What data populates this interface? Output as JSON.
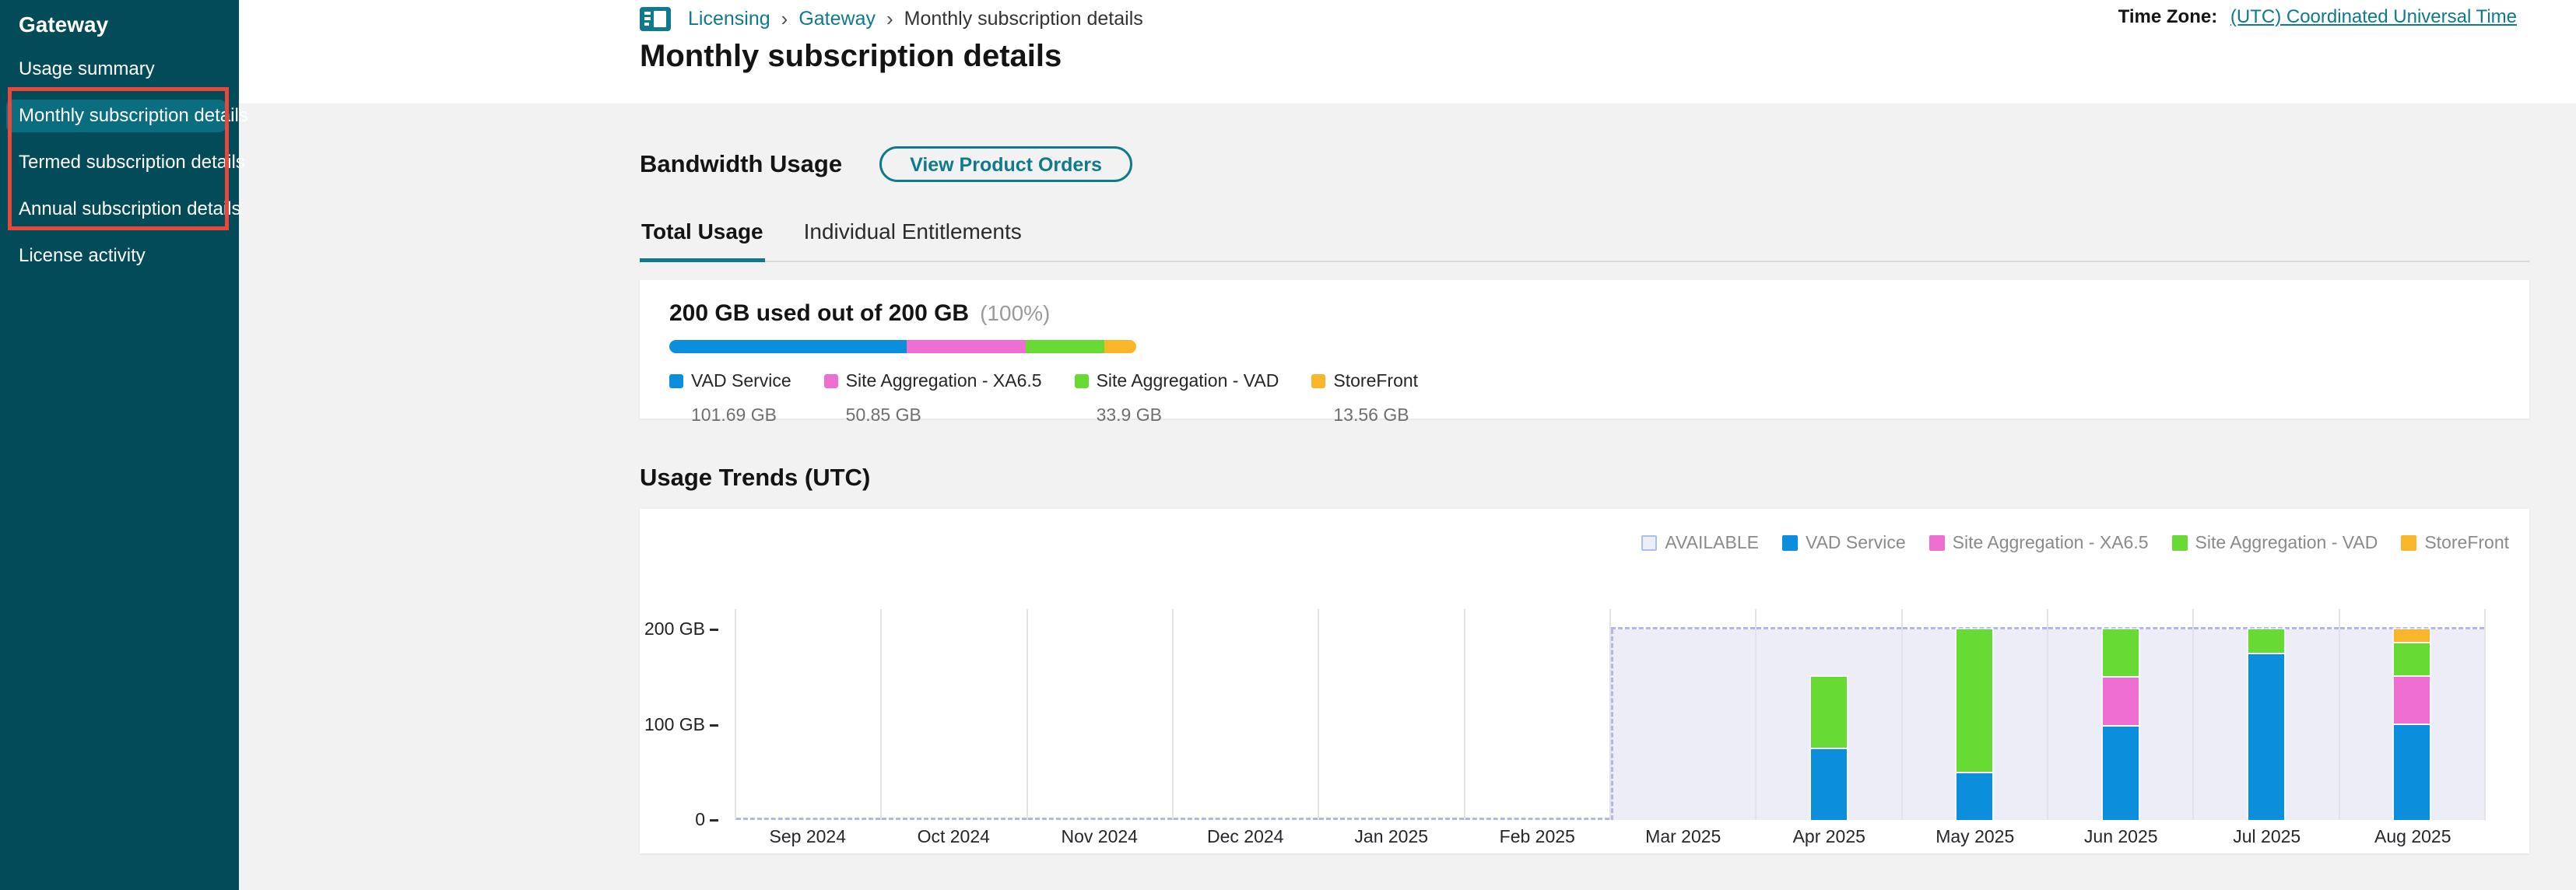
{
  "sidebar": {
    "title": "Gateway",
    "items": [
      {
        "label": "Usage summary",
        "active": false
      },
      {
        "label": "Monthly subscription details",
        "active": true
      },
      {
        "label": "Termed subscription details",
        "active": false
      },
      {
        "label": "Annual subscription details",
        "active": false
      },
      {
        "label": "License activity",
        "active": false
      }
    ],
    "annotation_color": "#e9483b"
  },
  "header": {
    "breadcrumb": [
      "Licensing",
      "Gateway",
      "Monthly subscription details"
    ],
    "timezone_label": "Time Zone:",
    "timezone_value": "(UTC) Coordinated Universal Time",
    "page_title": "Monthly subscription details"
  },
  "bandwidth": {
    "section_title": "Bandwidth Usage",
    "button_label": "View Product Orders",
    "tabs": [
      {
        "label": "Total Usage",
        "active": true
      },
      {
        "label": "Individual Entitlements",
        "active": false
      }
    ],
    "summary": {
      "headline": "200 GB used out of 200 GB",
      "percent": "(100%)",
      "total_gb": 200,
      "segments": [
        {
          "name": "VAD Service",
          "value_label": "101.69 GB",
          "gb": 101.69,
          "color": "#0b8fdd"
        },
        {
          "name": "Site Aggregation - XA6.5",
          "value_label": "50.85 GB",
          "gb": 50.85,
          "color": "#ee6fd1"
        },
        {
          "name": "Site Aggregation - VAD",
          "value_label": "33.9 GB",
          "gb": 33.9,
          "color": "#67da33"
        },
        {
          "name": "StoreFront",
          "value_label": "13.56 GB",
          "gb": 13.56,
          "color": "#f9b62a"
        }
      ]
    }
  },
  "usage_trends": {
    "section_title": "Usage Trends (UTC)"
  },
  "chart_data": {
    "type": "bar",
    "stacked": true,
    "title": "Usage Trends (UTC)",
    "categories": [
      "Sep 2024",
      "Oct 2024",
      "Nov 2024",
      "Dec 2024",
      "Jan 2025",
      "Feb 2025",
      "Mar 2025",
      "Apr 2025",
      "May 2025",
      "Jun 2025",
      "Jul 2025",
      "Aug 2025"
    ],
    "series": [
      {
        "name": "VAD Service",
        "color": "#0b8fdd",
        "values": [
          0,
          0,
          0,
          0,
          0,
          0,
          0,
          75,
          49,
          100,
          175,
          101.69
        ]
      },
      {
        "name": "Site Aggregation - XA6.5",
        "color": "#ee6fd1",
        "values": [
          0,
          0,
          0,
          0,
          0,
          0,
          0,
          0,
          0,
          50,
          0,
          50.85
        ]
      },
      {
        "name": "Site Aggregation - VAD",
        "color": "#67da33",
        "values": [
          0,
          0,
          0,
          0,
          0,
          0,
          0,
          75,
          151,
          50,
          25,
          33.9
        ]
      },
      {
        "name": "StoreFront",
        "color": "#f9b62a",
        "values": [
          0,
          0,
          0,
          0,
          0,
          0,
          0,
          0,
          0,
          0,
          0,
          13.56
        ]
      }
    ],
    "available": {
      "name": "AVAILABLE",
      "capacity_gb": 200,
      "from": "Mar 2025",
      "to": "Aug 2025",
      "fill": "#ededf8",
      "line": "#b4b7e6"
    },
    "y_ticks": [
      {
        "label": "200 GB",
        "value": 200
      },
      {
        "label": "100 GB",
        "value": 100
      },
      {
        "label": "0",
        "value": 0
      }
    ],
    "ylim": [
      0,
      200
    ],
    "legend": [
      "AVAILABLE",
      "VAD Service",
      "Site Aggregation - XA6.5",
      "Site Aggregation - VAD",
      "StoreFront"
    ],
    "legend_position": "top-right",
    "grid": "vertical-month-separators"
  }
}
